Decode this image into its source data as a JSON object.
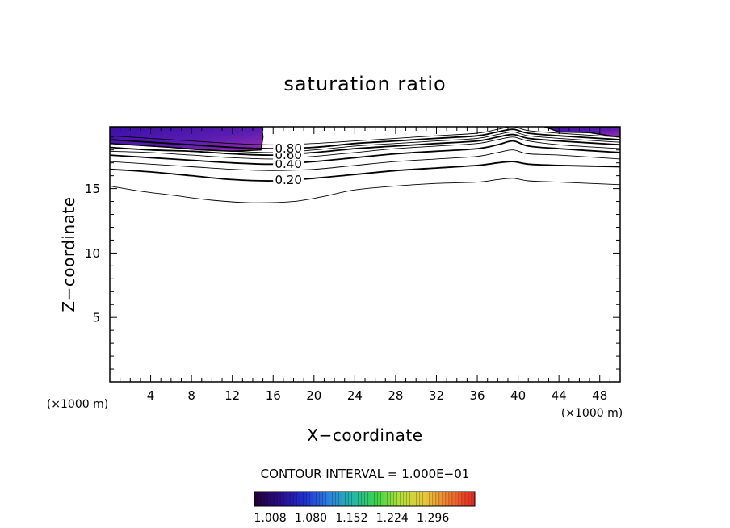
{
  "chart_data": {
    "type": "contour",
    "title": "saturation ratio",
    "xlabel": "X−coordinate",
    "ylabel": "Z−coordinate",
    "x_unit": "(×1000 m)",
    "y_unit": "(×1000 m)",
    "xlim": [
      0,
      50
    ],
    "ylim": [
      0,
      19.8
    ],
    "x_ticks": [
      4,
      8,
      12,
      16,
      20,
      24,
      28,
      32,
      36,
      40,
      44,
      48
    ],
    "y_ticks": [
      5,
      10,
      15
    ],
    "contour_interval_text": "CONTOUR INTERVAL = 1.000E−01",
    "contours": [
      {
        "level": 0.1,
        "x": [
          0,
          3,
          6,
          10,
          14,
          18,
          21,
          24,
          28,
          32,
          36,
          38,
          39.5,
          41,
          44,
          50
        ],
        "z": [
          15.2,
          14.8,
          14.5,
          14.1,
          13.9,
          14.0,
          14.4,
          14.9,
          15.2,
          15.4,
          15.5,
          15.7,
          15.8,
          15.6,
          15.5,
          15.3
        ]
      },
      {
        "level": 0.2,
        "x": [
          0,
          4,
          8,
          12,
          16,
          20,
          24,
          28,
          32,
          36,
          38,
          39.5,
          41,
          44,
          50
        ],
        "z": [
          16.5,
          16.3,
          16.0,
          15.7,
          15.6,
          15.8,
          16.1,
          16.4,
          16.6,
          16.8,
          17.0,
          17.1,
          16.9,
          16.8,
          16.7
        ]
      },
      {
        "level": 0.3,
        "x": [
          0,
          4,
          8,
          12,
          16,
          20,
          24,
          28,
          32,
          36,
          38,
          39.5,
          41,
          44,
          50
        ],
        "z": [
          17.1,
          16.9,
          16.7,
          16.5,
          16.4,
          16.5,
          16.8,
          17.1,
          17.3,
          17.5,
          17.8,
          18.0,
          17.7,
          17.6,
          17.3
        ]
      },
      {
        "level": 0.4,
        "x": [
          0,
          4,
          8,
          12,
          16,
          20,
          24,
          28,
          32,
          36,
          38,
          39.5,
          41,
          44,
          50
        ],
        "z": [
          17.6,
          17.4,
          17.2,
          17.0,
          16.9,
          17.1,
          17.4,
          17.7,
          17.9,
          18.1,
          18.4,
          18.7,
          18.3,
          18.1,
          17.8
        ]
      },
      {
        "level": 0.5,
        "x": [
          0,
          4,
          8,
          12,
          16,
          20,
          24,
          28,
          32,
          36,
          38,
          39.5,
          41,
          44,
          50
        ],
        "z": [
          17.9,
          17.8,
          17.6,
          17.4,
          17.3,
          17.5,
          17.8,
          18.1,
          18.3,
          18.5,
          18.8,
          19.0,
          18.7,
          18.4,
          18.1
        ]
      },
      {
        "level": 0.6,
        "x": [
          0,
          4,
          8,
          12,
          16,
          20,
          24,
          28,
          32,
          36,
          38,
          39.5,
          41,
          44,
          50
        ],
        "z": [
          18.2,
          18.0,
          17.9,
          17.7,
          17.6,
          17.8,
          18.1,
          18.3,
          18.5,
          18.7,
          19.0,
          19.2,
          18.9,
          18.7,
          18.4
        ]
      },
      {
        "level": 0.7,
        "x": [
          0,
          4,
          8,
          12,
          16,
          20,
          24,
          28,
          32,
          36,
          38,
          39.5,
          41,
          44,
          50
        ],
        "z": [
          18.5,
          18.3,
          18.1,
          17.9,
          17.8,
          18.0,
          18.3,
          18.5,
          18.7,
          18.9,
          19.2,
          19.4,
          19.1,
          18.9,
          18.6
        ]
      },
      {
        "level": 0.8,
        "x": [
          0,
          4,
          8,
          12,
          16,
          20,
          24,
          28,
          32,
          36,
          38,
          39.5,
          41,
          44,
          50
        ],
        "z": [
          18.8,
          18.6,
          18.4,
          18.2,
          18.1,
          18.2,
          18.5,
          18.7,
          18.9,
          19.1,
          19.4,
          19.6,
          19.3,
          19.1,
          18.8
        ]
      },
      {
        "level": 0.9,
        "x": [
          0,
          4,
          8,
          12,
          16,
          20,
          24,
          28,
          32,
          36,
          38,
          39.5,
          41,
          44,
          50
        ],
        "z": [
          19.1,
          18.9,
          18.7,
          18.5,
          18.4,
          18.5,
          18.7,
          18.9,
          19.1,
          19.3,
          19.6,
          19.8,
          19.5,
          19.3,
          19.0
        ]
      }
    ],
    "contour_labels": [
      {
        "text": "0.20",
        "x": 17.5,
        "z": 15.7
      },
      {
        "text": "0.40",
        "x": 17.5,
        "z": 16.95
      },
      {
        "text": "0.60",
        "x": 17.5,
        "z": 17.65
      },
      {
        "text": "0.80",
        "x": 17.5,
        "z": 18.15
      }
    ],
    "supersaturated_regions": [
      {
        "x": [
          0,
          3,
          6,
          9,
          12,
          14.8,
          15.0,
          14.9,
          0
        ],
        "z": [
          18.5,
          18.35,
          18.2,
          18.0,
          17.9,
          18.0,
          19.0,
          19.8,
          19.8
        ]
      },
      {
        "x": [
          42.6,
          44,
          47,
          49,
          50,
          50,
          42.6
        ],
        "z": [
          19.8,
          19.4,
          19.35,
          19.1,
          19.0,
          19.8,
          19.8
        ]
      }
    ],
    "colorbar": {
      "colors": [
        "#23003c",
        "#2b0e8a",
        "#1f2fd0",
        "#2d7fe0",
        "#22b8a8",
        "#3cd24a",
        "#b6e03a",
        "#e8c83a",
        "#ee7a2e",
        "#e02a22"
      ],
      "tick_labels": [
        "1.008",
        "1.080",
        "1.152",
        "1.224",
        "1.296"
      ],
      "tick_values": [
        1.008,
        1.08,
        1.152,
        1.224,
        1.296
      ],
      "range": [
        0.98,
        1.37
      ]
    }
  }
}
